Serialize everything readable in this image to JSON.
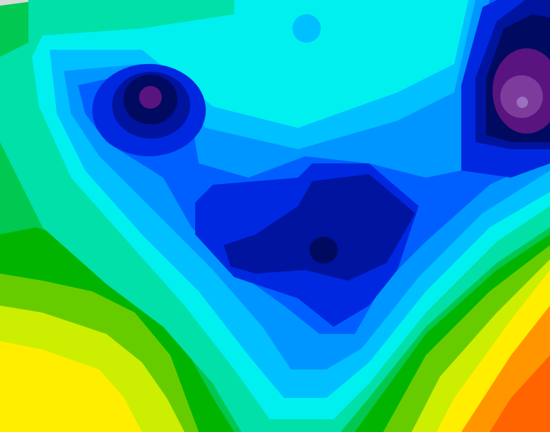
{
  "chart_data": {
    "type": "heatmap",
    "style": "filled-contour",
    "grid": false,
    "legend": "none",
    "colors": {
      "orange_red": "#ff6400",
      "orange": "#ff9600",
      "yellow": "#ffee00",
      "yellow_green": "#ccee00",
      "light_green": "#66cc00",
      "green": "#00b400",
      "medium_green": "#00c850",
      "teal": "#00e0a8",
      "cyan": "#00f0f0",
      "light_blue": "#00c0ff",
      "sky_blue": "#0096ff",
      "blue": "#0060ff",
      "royal_blue": "#0028e0",
      "dark_blue": "#0014a0",
      "navy": "#000a60",
      "purple": "#5a1480",
      "violet": "#7d3c9c",
      "lavender": "#9a70c0",
      "blank": "#d8d8d8"
    }
  }
}
